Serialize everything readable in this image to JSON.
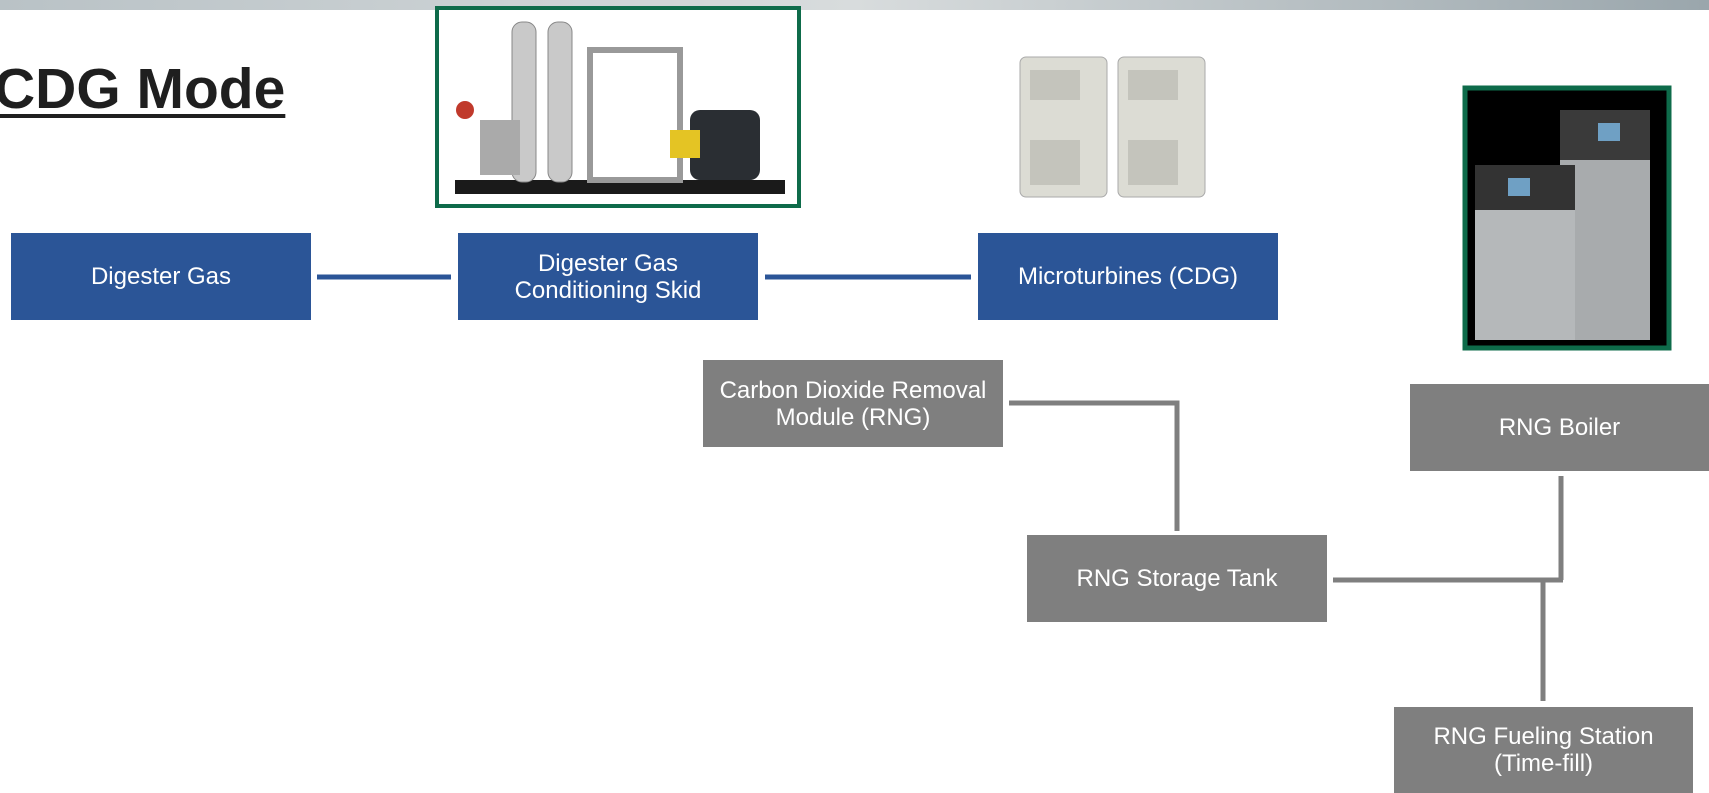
{
  "title": "CDG Mode",
  "nodes": [
    {
      "label": [
        "Digester Gas"
      ]
    },
    {
      "label": [
        "Digester Gas",
        "Conditioning Skid"
      ]
    },
    {
      "label": [
        "Microturbines (CDG)"
      ]
    },
    {
      "label": [
        "Carbon Dioxide Removal",
        "Module (RNG)"
      ]
    },
    {
      "label": [
        "RNG Storage Tank"
      ]
    },
    {
      "label": [
        "RNG Boiler"
      ]
    },
    {
      "label": [
        "RNG Fueling Station",
        "(Time-fill)"
      ]
    }
  ]
}
